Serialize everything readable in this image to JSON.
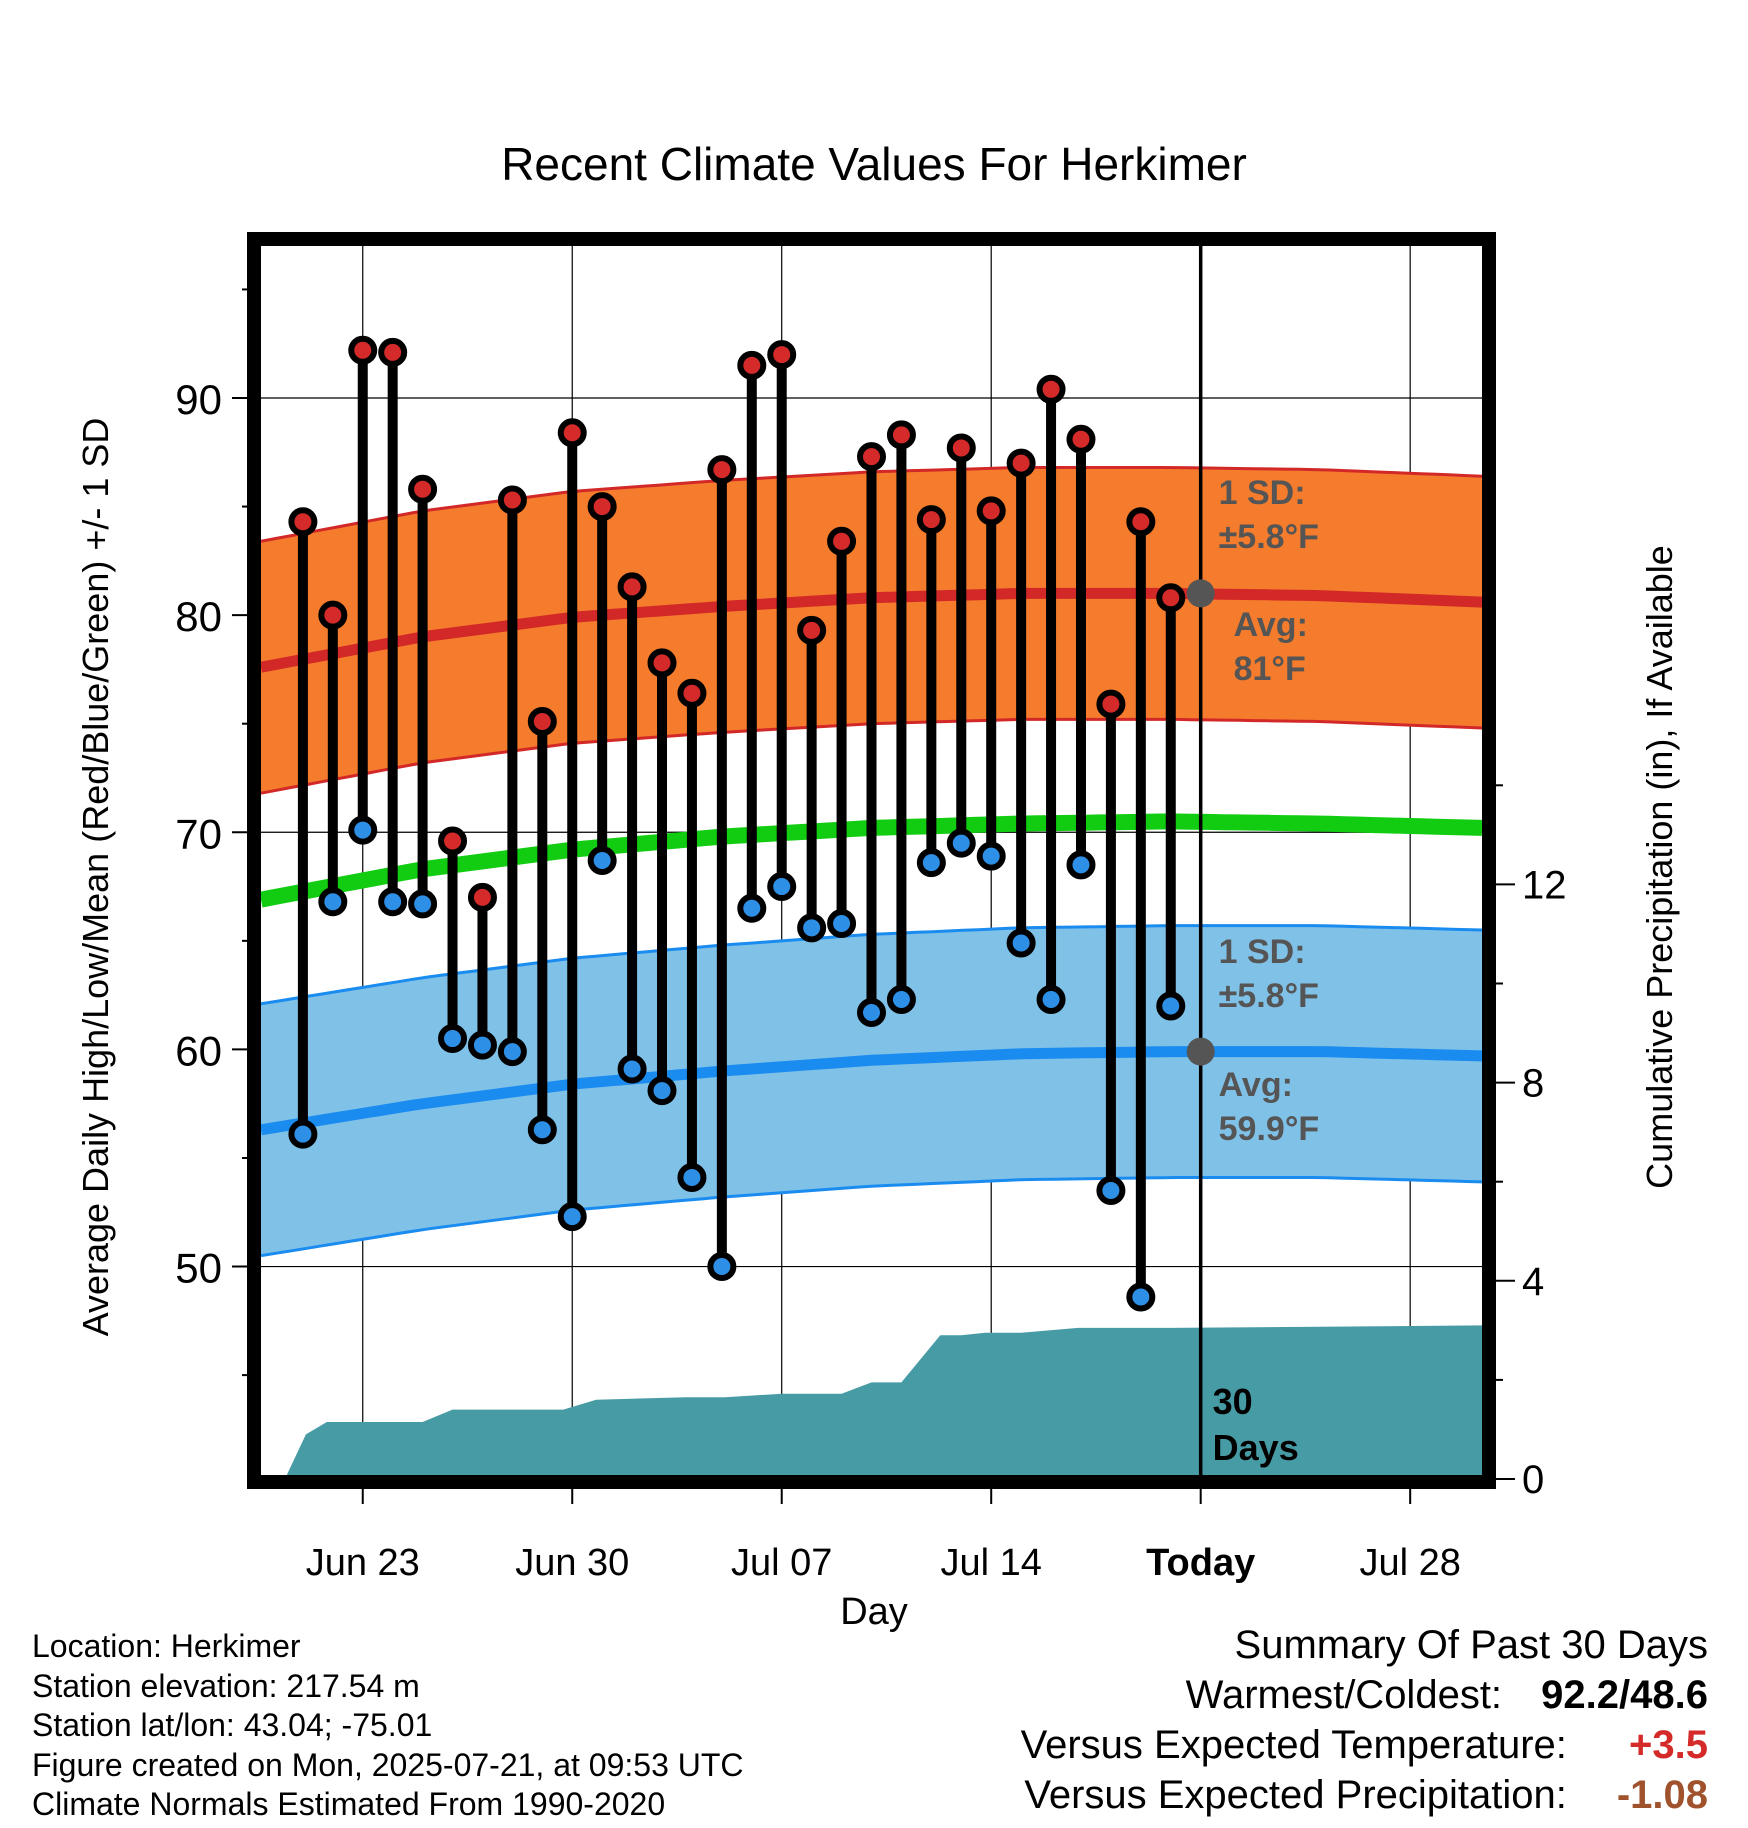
{
  "chart_data": {
    "type": "line",
    "title": "Recent Climate Values For Herkimer",
    "xlabel": "Day",
    "ylabel": "Average Daily High/Low/Mean (Red/Blue/Green) +/- 1 SD",
    "y2label": "Cumulative Precipitation (in), If Available",
    "xlim": [
      20.6,
      61.4
    ],
    "ylim": [
      40.4,
      97.0
    ],
    "y2lim": [
      0,
      20
    ],
    "x_ticks": [
      {
        "x": 24,
        "label": "Jun 23"
      },
      {
        "x": 31,
        "label": "Jun 30"
      },
      {
        "x": 38,
        "label": "Jul 07"
      },
      {
        "x": 45,
        "label": "Jul 14"
      },
      {
        "x": 52,
        "label": "Today"
      },
      {
        "x": 59,
        "label": "Jul 28"
      }
    ],
    "y_ticks": [
      50,
      60,
      70,
      80,
      90
    ],
    "y2_ticks": [
      0,
      4,
      8,
      12
    ],
    "today_x": 52,
    "days_label_line1": "30",
    "days_label_line2": "Days",
    "highs": {
      "x": [
        22,
        23,
        24,
        25,
        26,
        27,
        28,
        29,
        30,
        31,
        32,
        33,
        34,
        35,
        36,
        37,
        38,
        39,
        40,
        41,
        42,
        43,
        44,
        45,
        46,
        47,
        48,
        49,
        50,
        51
      ],
      "values": [
        84.3,
        80.0,
        92.2,
        92.1,
        85.8,
        69.6,
        67.0,
        85.3,
        75.1,
        88.4,
        85.0,
        81.3,
        77.8,
        76.4,
        86.7,
        91.5,
        92.0,
        79.3,
        83.4,
        87.3,
        88.3,
        84.4,
        87.7,
        84.8,
        87.0,
        90.4,
        88.1,
        75.9,
        84.3,
        80.8
      ],
      "color": "#d42a2a"
    },
    "lows": {
      "x": [
        22,
        23,
        24,
        25,
        26,
        27,
        28,
        29,
        30,
        31,
        32,
        33,
        34,
        35,
        36,
        37,
        38,
        39,
        40,
        41,
        42,
        43,
        44,
        45,
        46,
        47,
        48,
        49,
        50,
        51
      ],
      "values": [
        56.1,
        66.8,
        70.1,
        66.8,
        66.7,
        60.5,
        60.2,
        59.9,
        56.3,
        52.3,
        68.7,
        59.1,
        58.1,
        54.1,
        50.0,
        66.5,
        67.5,
        65.6,
        65.8,
        61.7,
        62.3,
        68.6,
        69.5,
        68.9,
        64.9,
        62.3,
        68.5,
        53.5,
        48.6,
        62.0
      ],
      "color": "#2e8fe6"
    },
    "normal_high": {
      "x": [
        20.6,
        26,
        31,
        36,
        41,
        46,
        51,
        56,
        61.4
      ],
      "values": [
        77.6,
        79.0,
        79.9,
        80.4,
        80.8,
        81.0,
        81.0,
        80.9,
        80.6
      ],
      "sd": 5.8,
      "band_color": "#f47c2c",
      "line_color": "#d22828"
    },
    "normal_low": {
      "x": [
        20.6,
        26,
        31,
        36,
        41,
        46,
        51,
        56,
        61.4
      ],
      "values": [
        56.3,
        57.5,
        58.4,
        59.0,
        59.5,
        59.8,
        59.9,
        59.9,
        59.7
      ],
      "sd": 5.8,
      "band_color": "#80c1e8",
      "line_color": "#1a8cf0"
    },
    "normal_mean": {
      "x": [
        20.6,
        26,
        31,
        36,
        41,
        46,
        51,
        56,
        61.4
      ],
      "values": [
        66.9,
        68.3,
        69.2,
        69.8,
        70.2,
        70.4,
        70.5,
        70.4,
        70.2
      ],
      "color": "#11cc11"
    },
    "precip": {
      "x": [
        21.4,
        22.1,
        22.8,
        26.0,
        27.0,
        30.7,
        31.8,
        34.8,
        36.1,
        38.0,
        40.0,
        41.0,
        42.0,
        43.3,
        44.0,
        44.8,
        46.0,
        47.9,
        51.0,
        61.4
      ],
      "values": [
        0.0,
        0.9,
        1.15,
        1.15,
        1.4,
        1.4,
        1.6,
        1.65,
        1.65,
        1.72,
        1.72,
        1.95,
        1.95,
        2.9,
        2.9,
        2.95,
        2.95,
        3.05,
        3.05,
        3.1
      ],
      "color": "#479ba5"
    },
    "annotations": {
      "high_sd_label": "1 SD:",
      "high_sd_value": "±5.8°F",
      "high_avg_label": "Avg:",
      "high_avg_value": "81°F",
      "low_sd_label": "1 SD:",
      "low_sd_value": "±5.8°F",
      "low_avg_label": "Avg:",
      "low_avg_value": "59.9°F",
      "high_avg_marker": 81.0,
      "low_avg_marker": 59.9
    }
  },
  "footer": {
    "location": "Location: Herkimer",
    "elevation": "Station elevation: 217.54 m",
    "latlon": "Station lat/lon: 43.04; -75.01",
    "created": "Figure created on Mon, 2025-07-21, at 09:53 UTC",
    "normals": "Climate Normals Estimated From 1990-2020"
  },
  "summary": {
    "heading": "Summary Of Past 30 Days",
    "warmest_label": "Warmest/Coldest:",
    "warmest_value": "92.2/48.6",
    "temp_label": "Versus Expected Temperature:",
    "temp_value": "+3.5",
    "temp_color": "#d42a2a",
    "precip_label": "Versus Expected Precipitation:",
    "precip_value": "-1.08",
    "precip_color": "#a0522d"
  }
}
